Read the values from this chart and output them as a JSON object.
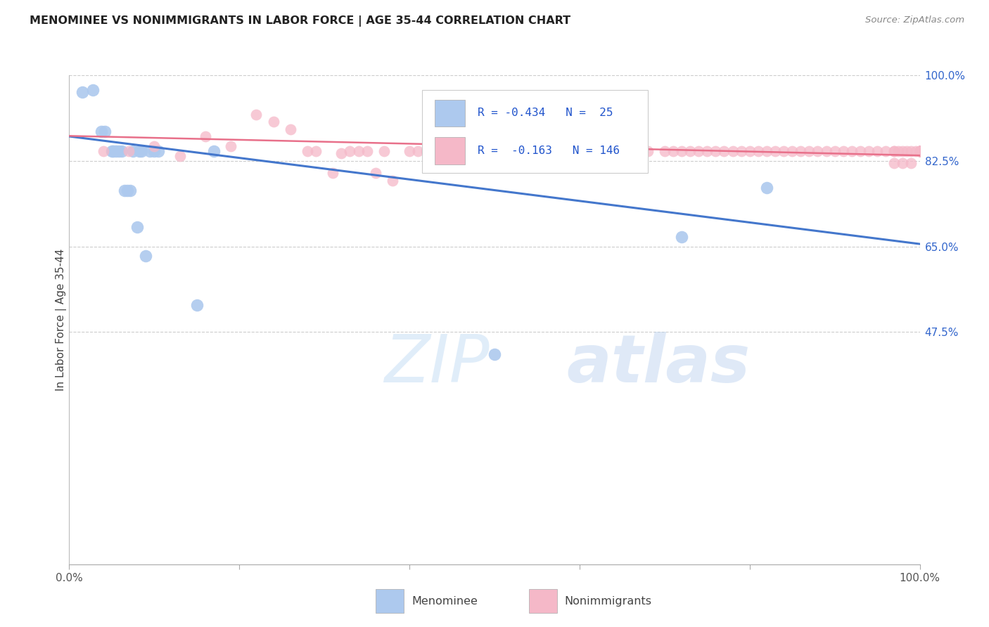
{
  "title": "MENOMINEE VS NONIMMIGRANTS IN LABOR FORCE | AGE 35-44 CORRELATION CHART",
  "source_text": "Source: ZipAtlas.com",
  "ylabel": "In Labor Force | Age 35-44",
  "xlim": [
    0.0,
    1.0
  ],
  "ylim": [
    0.0,
    1.0
  ],
  "ytick_labels": [
    "100.0%",
    "82.5%",
    "65.0%",
    "47.5%"
  ],
  "ytick_values": [
    1.0,
    0.825,
    0.65,
    0.475
  ],
  "menominee_color": "#adc9ee",
  "menominee_edge": "#adc9ee",
  "nonimmigrant_color": "#f5b8c8",
  "nonimmigrant_edge": "#f5b8c8",
  "menominee_line_color": "#4477cc",
  "nonimmigrant_line_color": "#e8708a",
  "watermark": "ZIPatlas",
  "background_color": "#ffffff",
  "grid_color": "#cccccc",
  "legend_r1": "R = -0.434",
  "legend_n1": "N =  25",
  "legend_r2": "R =  -0.163",
  "legend_n2": "N = 146",
  "menominee_x": [
    0.015,
    0.028,
    0.038,
    0.042,
    0.05,
    0.052,
    0.055,
    0.058,
    0.062,
    0.065,
    0.068,
    0.072,
    0.075,
    0.08,
    0.082,
    0.085,
    0.09,
    0.095,
    0.1,
    0.105,
    0.15,
    0.17,
    0.5,
    0.72,
    0.82
  ],
  "menominee_y": [
    0.965,
    0.97,
    0.885,
    0.885,
    0.845,
    0.845,
    0.845,
    0.845,
    0.845,
    0.765,
    0.765,
    0.765,
    0.845,
    0.69,
    0.845,
    0.845,
    0.63,
    0.845,
    0.845,
    0.845,
    0.53,
    0.845,
    0.43,
    0.67,
    0.77
  ],
  "nonimmigrant_x": [
    0.04,
    0.07,
    0.1,
    0.13,
    0.16,
    0.19,
    0.22,
    0.24,
    0.26,
    0.28,
    0.29,
    0.31,
    0.32,
    0.33,
    0.34,
    0.35,
    0.36,
    0.37,
    0.38,
    0.4,
    0.41,
    0.42,
    0.44,
    0.46,
    0.48,
    0.5,
    0.52,
    0.55,
    0.58,
    0.6,
    0.62,
    0.64,
    0.65,
    0.66,
    0.67,
    0.68,
    0.7,
    0.71,
    0.72,
    0.73,
    0.74,
    0.75,
    0.76,
    0.77,
    0.78,
    0.79,
    0.8,
    0.81,
    0.82,
    0.83,
    0.84,
    0.85,
    0.86,
    0.87,
    0.88,
    0.89,
    0.9,
    0.91,
    0.92,
    0.93,
    0.94,
    0.95,
    0.96,
    0.97,
    0.97,
    0.97,
    0.975,
    0.98,
    0.98,
    0.985,
    0.99,
    0.99,
    0.995,
    1.0,
    1.0,
    1.0,
    1.0,
    1.0,
    1.0,
    1.0,
    1.0,
    1.0,
    1.0,
    1.0,
    1.0,
    1.0,
    1.0,
    1.0,
    1.0,
    1.0,
    1.0,
    1.0,
    1.0,
    1.0,
    1.0,
    1.0,
    1.0,
    1.0,
    1.0,
    1.0,
    1.0,
    1.0,
    1.0,
    1.0,
    1.0,
    1.0,
    1.0,
    1.0,
    1.0,
    1.0,
    1.0,
    1.0,
    1.0,
    1.0,
    1.0,
    1.0,
    1.0,
    1.0,
    1.0,
    1.0,
    1.0,
    1.0,
    1.0,
    1.0,
    1.0,
    1.0,
    1.0,
    1.0,
    1.0,
    1.0,
    1.0,
    1.0,
    1.0,
    1.0,
    1.0,
    1.0,
    1.0,
    1.0,
    1.0,
    1.0,
    1.0,
    1.0,
    1.0
  ],
  "nonimmigrant_y": [
    0.845,
    0.845,
    0.855,
    0.835,
    0.875,
    0.855,
    0.92,
    0.905,
    0.89,
    0.845,
    0.845,
    0.8,
    0.84,
    0.845,
    0.845,
    0.845,
    0.8,
    0.845,
    0.785,
    0.845,
    0.845,
    0.845,
    0.845,
    0.845,
    0.845,
    0.845,
    0.845,
    0.845,
    0.845,
    0.845,
    0.845,
    0.845,
    0.845,
    0.845,
    0.845,
    0.845,
    0.845,
    0.845,
    0.845,
    0.845,
    0.845,
    0.845,
    0.845,
    0.845,
    0.845,
    0.845,
    0.845,
    0.845,
    0.845,
    0.845,
    0.845,
    0.845,
    0.845,
    0.845,
    0.845,
    0.845,
    0.845,
    0.845,
    0.845,
    0.845,
    0.845,
    0.845,
    0.845,
    0.845,
    0.845,
    0.82,
    0.845,
    0.845,
    0.82,
    0.845,
    0.845,
    0.82,
    0.845,
    0.845,
    0.845,
    0.845,
    0.845,
    0.845,
    0.845,
    0.845,
    0.845,
    0.845,
    0.845,
    0.845,
    0.845,
    0.845,
    0.845,
    0.845,
    0.845,
    0.845,
    0.845,
    0.845,
    0.845,
    0.845,
    0.845,
    0.845,
    0.845,
    0.845,
    0.845,
    0.845,
    0.845,
    0.845,
    0.845,
    0.845,
    0.845,
    0.845,
    0.845,
    0.845,
    0.845,
    0.845,
    0.845,
    0.845,
    0.845,
    0.845,
    0.845,
    0.845,
    0.845,
    0.845,
    0.845,
    0.845,
    0.845,
    0.845,
    0.845,
    0.845,
    0.845,
    0.845,
    0.845,
    0.845,
    0.845,
    0.845,
    0.845,
    0.845,
    0.845,
    0.845,
    0.845,
    0.845,
    0.845,
    0.845,
    0.845,
    0.845,
    0.845,
    0.845,
    0.845
  ],
  "menominee_trendline_x": [
    0.0,
    1.0
  ],
  "menominee_trendline_y": [
    0.875,
    0.655
  ],
  "nonimmigrant_trendline_x": [
    0.0,
    1.0
  ],
  "nonimmigrant_trendline_y": [
    0.876,
    0.836
  ]
}
